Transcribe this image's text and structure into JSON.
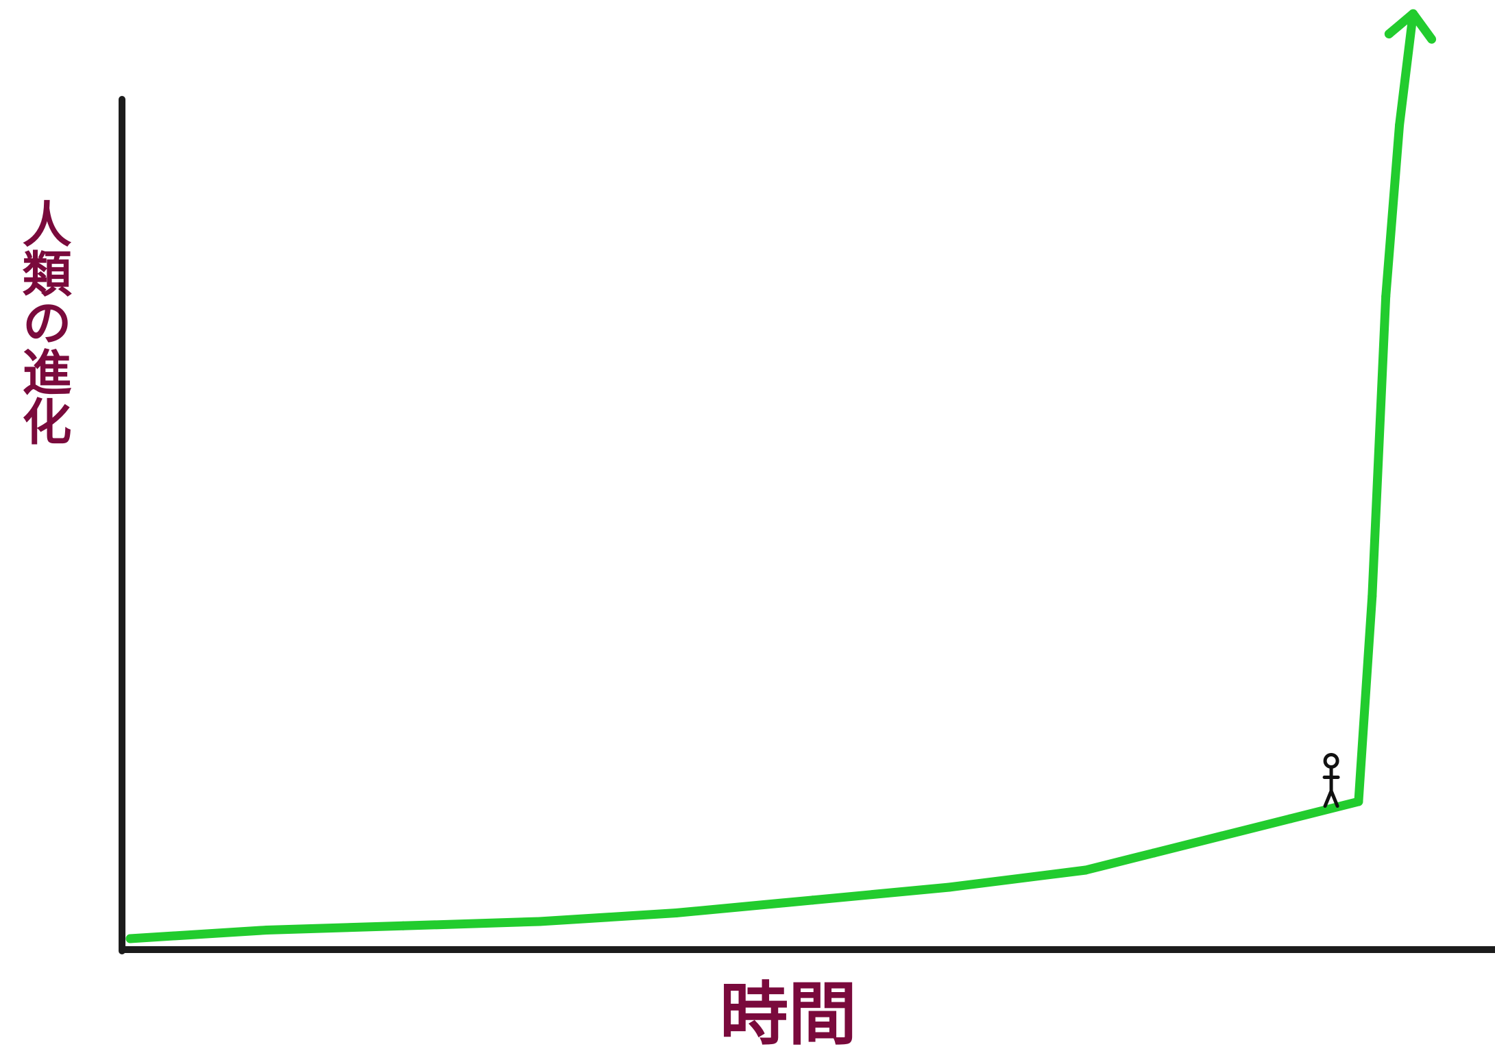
{
  "chart_data": {
    "type": "line",
    "title": "",
    "xlabel": "時間",
    "ylabel": "人類の進化",
    "grid": false,
    "legend": "none",
    "series": [
      {
        "x": [
          0,
          10,
          20,
          30,
          40,
          50,
          60,
          70,
          75,
          80,
          85,
          90,
          91,
          92,
          93,
          94
        ],
        "values": [
          0,
          1,
          1.5,
          2,
          3,
          4.5,
          6,
          8,
          10,
          12,
          14,
          16,
          40,
          75,
          95,
          108
        ]
      }
    ],
    "xlim": [
      0,
      100
    ],
    "ylim": [
      0,
      100
    ],
    "annotations": [
      {
        "kind": "stick-figure",
        "x": 88,
        "y": 15
      }
    ],
    "colors": {
      "line": "#22cc2e",
      "axis": "#1c1c1c",
      "label": "#7a0a3c"
    }
  }
}
